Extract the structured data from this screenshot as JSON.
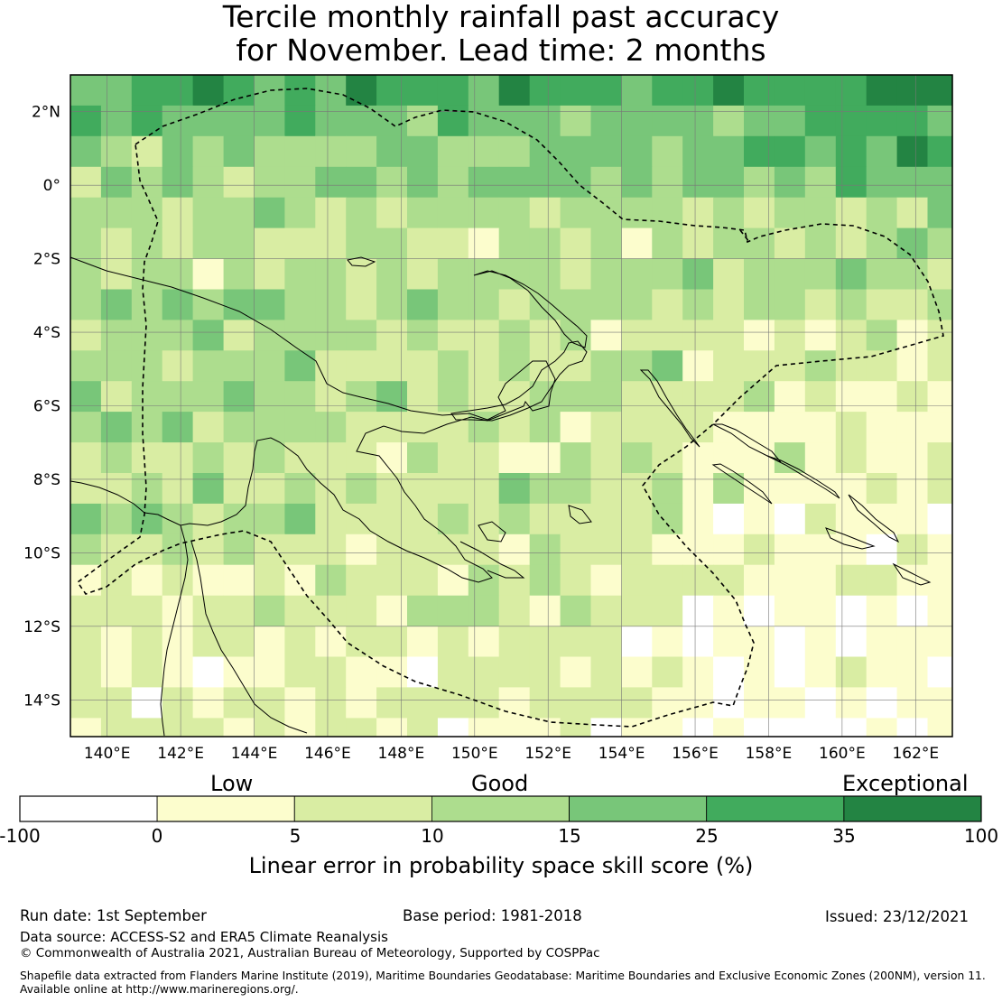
{
  "title": {
    "line1": "Tercile monthly rainfall past accuracy",
    "line2": "for November. Lead time: 2 months"
  },
  "map": {
    "lon_min": 139.0,
    "lon_max": 163.0,
    "lat_min": -15.0,
    "lat_max": 3.0,
    "lon_ticks": [
      "140°E",
      "142°E",
      "144°E",
      "146°E",
      "148°E",
      "150°E",
      "152°E",
      "154°E",
      "156°E",
      "158°E",
      "160°E",
      "162°E"
    ],
    "lat_ticks": [
      "2°N",
      "0°",
      "2°S",
      "4°S",
      "6°S",
      "8°S",
      "10°S",
      "12°S",
      "14°S"
    ],
    "category_colors": [
      "#ffffff",
      "#fcfdcd",
      "#d9eda3",
      "#addd8e",
      "#78c679",
      "#41ab5d",
      "#238443"
    ],
    "coastline_color": "#000000",
    "boundary_style": "dashed"
  },
  "colorbar": {
    "labels_top": [
      "Low",
      "Good",
      "Exceptional"
    ],
    "ticks": [
      "-100",
      "0",
      "5",
      "10",
      "15",
      "25",
      "35",
      "100"
    ],
    "colors": [
      "#ffffff",
      "#fcfdcd",
      "#d9eda3",
      "#addd8e",
      "#78c679",
      "#41ab5d",
      "#238443"
    ],
    "label": "Linear error in probability space skill score (%)"
  },
  "footer": {
    "run_date": "Run date: 1st September",
    "base_period": "Base period: 1981-2018",
    "issued": "Issued: 23/12/2021",
    "data_source": "Data source: ACCESS-S2 and ERA5 Climate Reanalysis",
    "copyright": "© Commonwealth of Australia 2021, Australian Bureau of Meteorology, Supported by COSPPac",
    "shapefile_line1": "Shapefile data extracted from Flanders Marine Institute (2019), Maritime Boundaries Geodatabase: Maritime Boundaries and Exclusive Economic Zones (200NM), version 11.",
    "shapefile_line2": "Available online at http://www.marineregions.org/."
  }
}
